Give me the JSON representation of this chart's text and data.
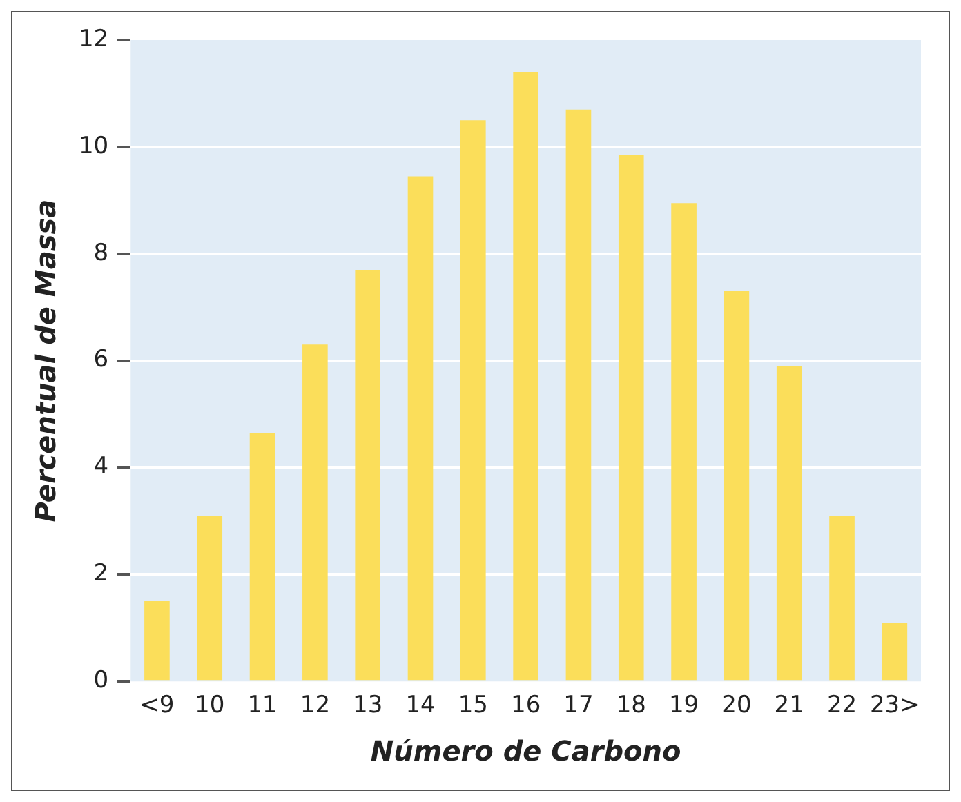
{
  "chart_data": {
    "type": "bar",
    "xlabel": "Número de Carbono",
    "ylabel": "Percentual de Massa",
    "categories": [
      "<9",
      "10",
      "11",
      "12",
      "13",
      "14",
      "15",
      "16",
      "17",
      "18",
      "19",
      "20",
      "21",
      "22",
      "23>"
    ],
    "values": [
      1.5,
      3.1,
      4.65,
      6.3,
      7.7,
      9.45,
      10.5,
      11.4,
      10.7,
      9.85,
      8.95,
      7.3,
      5.9,
      3.1,
      1.1
    ],
    "color": "#fbde5a",
    "ylim": [
      0,
      12
    ],
    "yticks": [
      0,
      2,
      4,
      6,
      8,
      10,
      12
    ],
    "grid": "y"
  }
}
